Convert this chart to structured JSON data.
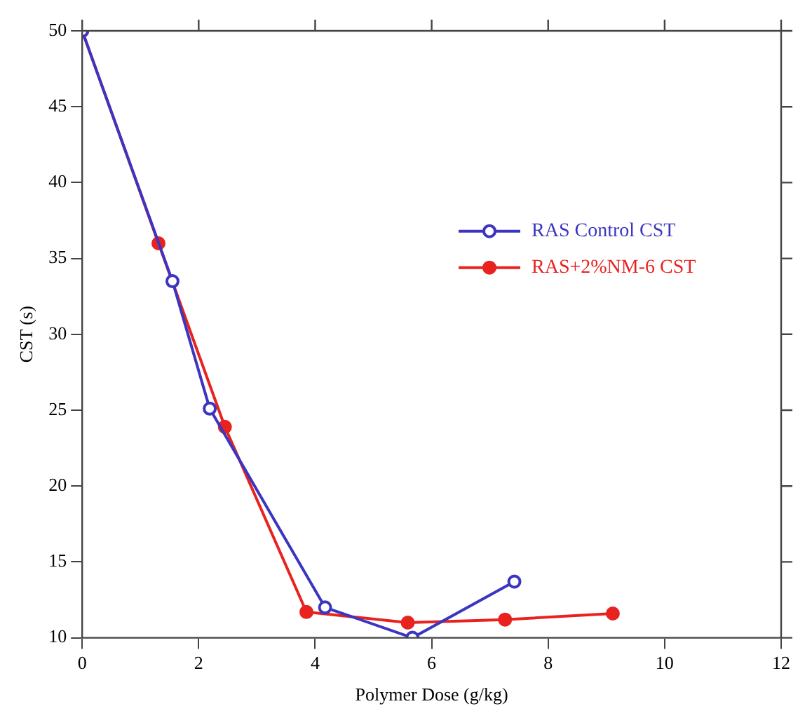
{
  "chart_data": {
    "type": "line",
    "xlabel": "Polymer Dose (g/kg)",
    "ylabel": "CST (s)",
    "xlim": [
      0,
      12
    ],
    "xticks": [
      0,
      2,
      4,
      6,
      8,
      10,
      12
    ],
    "ylim": [
      10,
      50
    ],
    "yticks": [
      10,
      15,
      20,
      25,
      30,
      35,
      40,
      45,
      50
    ],
    "grid": false,
    "legend": "top right",
    "marker": "circle",
    "line_style": "solid",
    "series": [
      {
        "name": "RAS Control CST",
        "color": "#3b35c0",
        "x": [
          0,
          1.55,
          2.19,
          4.17,
          5.67,
          7.42
        ],
        "values": [
          50,
          33.5,
          25.1,
          12,
          10,
          13.7
        ]
      },
      {
        "name": "RAS+2%NM-6 CST",
        "color": "#e8231f",
        "x": [
          0,
          1.31,
          2.45,
          3.85,
          5.59,
          7.26,
          9.11
        ],
        "values": [
          50,
          36,
          23.9,
          11.7,
          11,
          11.2,
          11.6
        ]
      }
    ]
  }
}
